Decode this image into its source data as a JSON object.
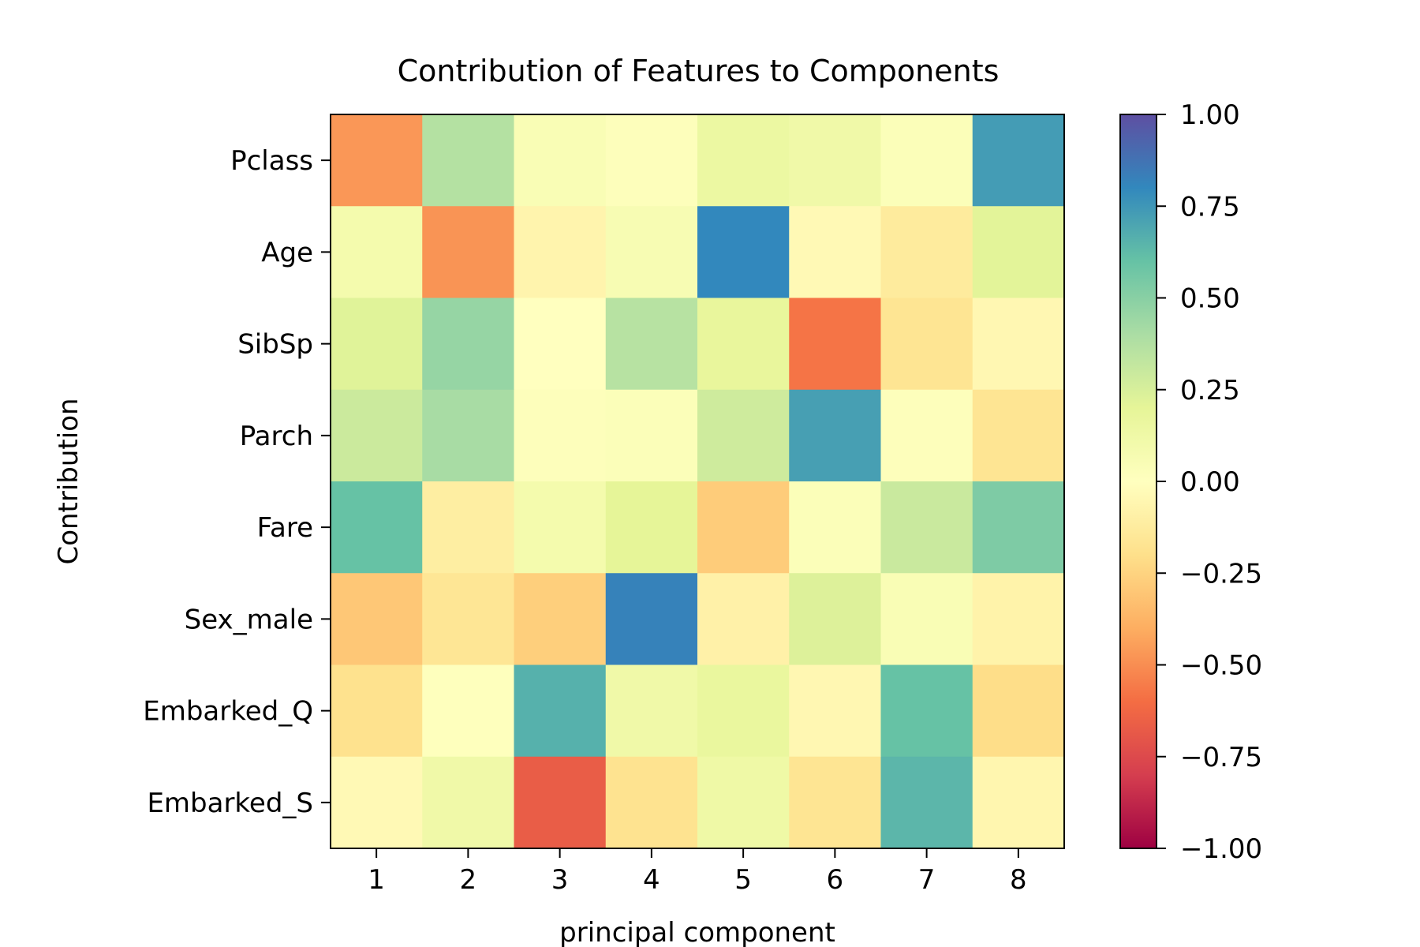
{
  "chart_data": {
    "type": "heatmap",
    "title": "Contribution of Features to Components",
    "xlabel": "principal component",
    "ylabel": "Contribution",
    "x_categories": [
      "1",
      "2",
      "3",
      "4",
      "5",
      "6",
      "7",
      "8"
    ],
    "y_categories": [
      "Pclass",
      "Age",
      "SibSp",
      "Parch",
      "Fare",
      "Sex_male",
      "Embarked_Q",
      "Embarked_S"
    ],
    "values": [
      [
        -0.47,
        0.37,
        0.05,
        0.02,
        0.15,
        0.12,
        0.03,
        0.73
      ],
      [
        0.09,
        -0.48,
        -0.07,
        0.06,
        0.8,
        -0.04,
        -0.13,
        0.21
      ],
      [
        0.22,
        0.46,
        0.0,
        0.36,
        0.18,
        -0.58,
        -0.17,
        -0.05
      ],
      [
        0.29,
        0.41,
        0.02,
        0.03,
        0.28,
        0.72,
        0.02,
        -0.17
      ],
      [
        0.6,
        -0.11,
        0.09,
        0.2,
        -0.28,
        0.03,
        0.3,
        0.53
      ],
      [
        -0.3,
        -0.16,
        -0.27,
        0.82,
        -0.09,
        0.23,
        0.05,
        -0.08
      ],
      [
        -0.19,
        0.01,
        0.66,
        0.12,
        0.17,
        -0.05,
        0.6,
        -0.21
      ],
      [
        -0.04,
        0.12,
        -0.67,
        -0.18,
        0.13,
        -0.17,
        0.64,
        -0.06
      ]
    ],
    "colorbar": {
      "range": [
        -1.0,
        1.0
      ],
      "ticks": [
        "1.00",
        "0.75",
        "0.50",
        "0.25",
        "0.00",
        "−0.25",
        "−0.50",
        "−0.75",
        "−1.00"
      ],
      "tick_values": [
        1.0,
        0.75,
        0.5,
        0.25,
        0.0,
        -0.25,
        -0.5,
        -0.75,
        -1.0
      ],
      "colormap": "Spectral",
      "colormap_stops": [
        "#9e0142",
        "#d53e4f",
        "#f46d43",
        "#fdae61",
        "#fee08b",
        "#ffffbf",
        "#e6f598",
        "#abdda4",
        "#66c2a5",
        "#3288bd",
        "#5e4fa2"
      ]
    },
    "grid": false,
    "legend": "none"
  }
}
